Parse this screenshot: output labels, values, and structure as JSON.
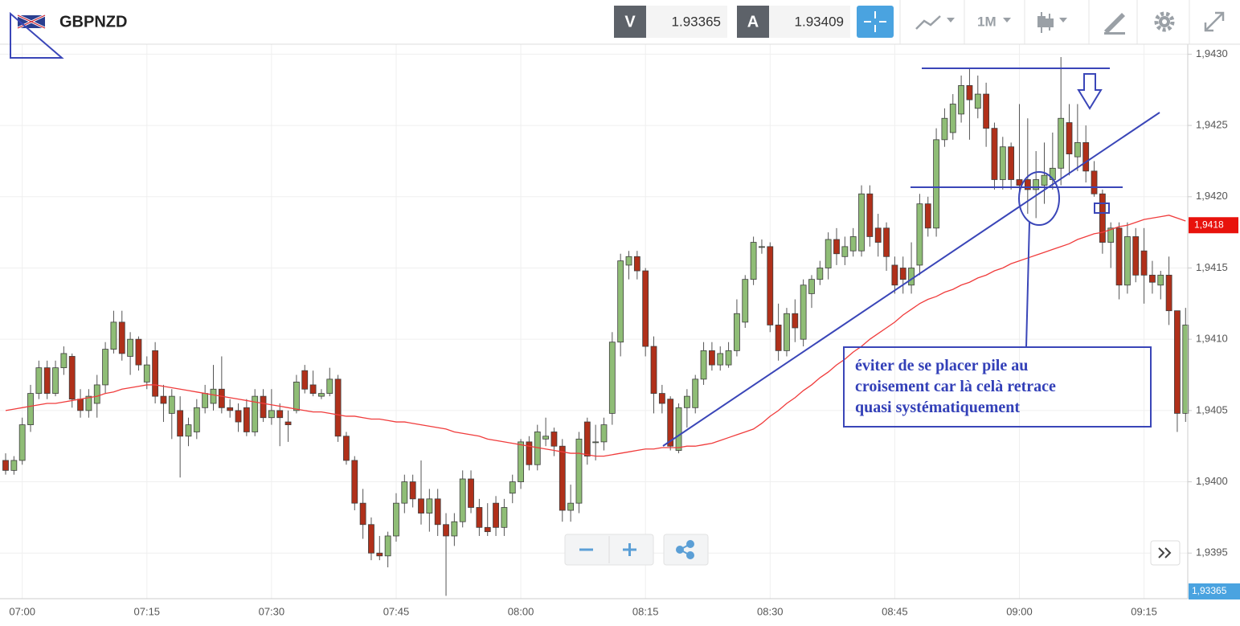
{
  "toolbar": {
    "symbol": "GBPNZD",
    "bid_label": "V",
    "bid": "1.93365",
    "ask_label": "A",
    "ask": "1.93409",
    "timeframe": "1M"
  },
  "chart_data": {
    "type": "candlestick",
    "categories": [
      null,
      null,
      "07:00",
      null,
      null,
      null,
      null,
      null,
      null,
      null,
      null,
      null,
      null,
      null,
      null,
      null,
      null,
      "07:15",
      null,
      null,
      null,
      null,
      null,
      null,
      null,
      null,
      null,
      null,
      null,
      null,
      null,
      null,
      "07:30",
      null,
      null,
      null,
      null,
      null,
      null,
      null,
      null,
      null,
      null,
      null,
      null,
      null,
      null,
      "07:45",
      null,
      null,
      null,
      null,
      null,
      null,
      null,
      null,
      null,
      null,
      null,
      null,
      null,
      null,
      "08:00",
      null,
      null,
      null,
      null,
      null,
      null,
      null,
      null,
      null,
      null,
      null,
      null,
      null,
      null,
      "08:15",
      null,
      null,
      null,
      null,
      null,
      null,
      null,
      null,
      null,
      null,
      null,
      null,
      null,
      null,
      "08:30",
      null,
      null,
      null,
      null,
      null,
      null,
      null,
      null,
      null,
      null,
      null,
      null,
      null,
      null,
      "08:45",
      null,
      null,
      null,
      null,
      null,
      null,
      null,
      null,
      null,
      null,
      null,
      null,
      null,
      null,
      "09:00",
      null,
      null,
      null,
      null,
      null,
      null,
      null,
      null,
      null,
      null,
      null,
      null,
      null,
      null,
      "09:15",
      null,
      null,
      null,
      null,
      null
    ],
    "ohlc": [
      [
        1.94015,
        1.9402,
        1.94005,
        1.94008
      ],
      [
        1.94008,
        1.94018,
        1.94005,
        1.94015
      ],
      [
        1.94015,
        1.94045,
        1.94012,
        1.9404
      ],
      [
        1.9404,
        1.94068,
        1.94035,
        1.94062
      ],
      [
        1.94062,
        1.94085,
        1.94058,
        1.9408
      ],
      [
        1.9408,
        1.94085,
        1.94058,
        1.94062
      ],
      [
        1.94062,
        1.94085,
        1.9406,
        1.9408
      ],
      [
        1.9408,
        1.94095,
        1.94075,
        1.9409
      ],
      [
        1.94088,
        1.9409,
        1.94052,
        1.94058
      ],
      [
        1.94058,
        1.94065,
        1.94045,
        1.9405
      ],
      [
        1.9405,
        1.94065,
        1.94045,
        1.9406
      ],
      [
        1.94055,
        1.94075,
        1.94045,
        1.94068
      ],
      [
        1.94068,
        1.94098,
        1.94062,
        1.94093
      ],
      [
        1.94093,
        1.9412,
        1.9409,
        1.94112
      ],
      [
        1.94112,
        1.9412,
        1.94085,
        1.9409
      ],
      [
        1.94088,
        1.94105,
        1.94075,
        1.941
      ],
      [
        1.941,
        1.94102,
        1.94078,
        1.94082
      ],
      [
        1.9407,
        1.94088,
        1.94065,
        1.94082
      ],
      [
        1.94092,
        1.94098,
        1.94055,
        1.9406
      ],
      [
        1.9406,
        1.94068,
        1.94042,
        1.94055
      ],
      [
        1.94048,
        1.94065,
        1.9403,
        1.9406
      ],
      [
        1.9405,
        1.9406,
        1.94003,
        1.94032
      ],
      [
        1.94032,
        1.94045,
        1.94025,
        1.9404
      ],
      [
        1.94035,
        1.94058,
        1.9403,
        1.94052
      ],
      [
        1.94052,
        1.94068,
        1.94048,
        1.94062
      ],
      [
        1.94055,
        1.94082,
        1.9405,
        1.94065
      ],
      [
        1.94065,
        1.94088,
        1.94048,
        1.94052
      ],
      [
        1.94052,
        1.94058,
        1.94045,
        1.9405
      ],
      [
        1.9405,
        1.94055,
        1.94035,
        1.94042
      ],
      [
        1.94052,
        1.94058,
        1.94032,
        1.94035
      ],
      [
        1.94035,
        1.94065,
        1.94032,
        1.9406
      ],
      [
        1.9406,
        1.94065,
        1.94042,
        1.94045
      ],
      [
        1.94045,
        1.94065,
        1.9404,
        1.9405
      ],
      [
        1.9405,
        1.94055,
        1.94025,
        1.94045
      ],
      [
        1.94042,
        1.9405,
        1.94028,
        1.9404
      ],
      [
        1.9405,
        1.94075,
        1.94048,
        1.9407
      ],
      [
        1.94078,
        1.94082,
        1.94062,
        1.94065
      ],
      [
        1.94068,
        1.94078,
        1.9406,
        1.94062
      ],
      [
        1.9406,
        1.94065,
        1.94058,
        1.94062
      ],
      [
        1.94062,
        1.9408,
        1.9406,
        1.94072
      ],
      [
        1.94072,
        1.94075,
        1.94028,
        1.94032
      ],
      [
        1.94032,
        1.94035,
        1.94012,
        1.94015
      ],
      [
        1.94015,
        1.94018,
        1.9398,
        1.93985
      ],
      [
        1.93985,
        1.93995,
        1.9396,
        1.9397
      ],
      [
        1.9397,
        1.93975,
        1.93945,
        1.9395
      ],
      [
        1.9395,
        1.93962,
        1.93945,
        1.93948
      ],
      [
        1.93948,
        1.93965,
        1.9394,
        1.93962
      ],
      [
        1.93962,
        1.93992,
        1.93958,
        1.93985
      ],
      [
        1.93985,
        1.94005,
        1.93978,
        1.94
      ],
      [
        1.94,
        1.94005,
        1.93982,
        1.93988
      ],
      [
        1.93988,
        1.94015,
        1.9397,
        1.93978
      ],
      [
        1.93978,
        1.93995,
        1.93965,
        1.93988
      ],
      [
        1.93988,
        1.93995,
        1.93962,
        1.9397
      ],
      [
        1.9397,
        1.93978,
        1.9392,
        1.93962
      ],
      [
        1.93962,
        1.93978,
        1.93955,
        1.93972
      ],
      [
        1.93972,
        1.94008,
        1.93968,
        1.94002
      ],
      [
        1.94002,
        1.94008,
        1.93978,
        1.93982
      ],
      [
        1.93982,
        1.93988,
        1.93962,
        1.93968
      ],
      [
        1.93968,
        1.93985,
        1.93962,
        1.93965
      ],
      [
        1.93985,
        1.9399,
        1.93962,
        1.93968
      ],
      [
        1.93968,
        1.93988,
        1.93962,
        1.93982
      ],
      [
        1.93992,
        1.94005,
        1.93985,
        1.94
      ],
      [
        1.94,
        1.9403,
        1.93995,
        1.94028
      ],
      [
        1.94028,
        1.94032,
        1.94008,
        1.94012
      ],
      [
        1.94012,
        1.9404,
        1.94008,
        1.94035
      ],
      [
        1.9403,
        1.94045,
        1.94025,
        1.94032
      ],
      [
        1.94035,
        1.94038,
        1.94018,
        1.94025
      ],
      [
        1.94025,
        1.9403,
        1.93972,
        1.9398
      ],
      [
        1.9398,
        1.93998,
        1.93972,
        1.93985
      ],
      [
        1.93985,
        1.94035,
        1.93978,
        1.9403
      ],
      [
        1.94042,
        1.94045,
        1.94012,
        1.94018
      ],
      [
        1.94028,
        1.9404,
        1.94015,
        1.94028
      ],
      [
        1.94028,
        1.94045,
        1.94022,
        1.9404
      ],
      [
        1.94048,
        1.94105,
        1.9404,
        1.94098
      ],
      [
        1.94098,
        1.9416,
        1.94088,
        1.94155
      ],
      [
        1.94152,
        1.94162,
        1.94142,
        1.94158
      ],
      [
        1.94158,
        1.94162,
        1.94142,
        1.94148
      ],
      [
        1.94148,
        1.9415,
        1.94088,
        1.94095
      ],
      [
        1.94095,
        1.94102,
        1.94048,
        1.94062
      ],
      [
        1.94062,
        1.94068,
        1.94048,
        1.94055
      ],
      [
        1.94058,
        1.9406,
        1.94022,
        1.94025
      ],
      [
        1.94022,
        1.94055,
        1.9402,
        1.94052
      ],
      [
        1.94052,
        1.94065,
        1.94038,
        1.9406
      ],
      [
        1.94052,
        1.94075,
        1.94048,
        1.94072
      ],
      [
        1.94072,
        1.94098,
        1.94068,
        1.94092
      ],
      [
        1.94092,
        1.94098,
        1.94078,
        1.94082
      ],
      [
        1.94082,
        1.94095,
        1.94078,
        1.9409
      ],
      [
        1.94082,
        1.94098,
        1.9408,
        1.94092
      ],
      [
        1.94092,
        1.94128,
        1.94088,
        1.94118
      ],
      [
        1.94112,
        1.94145,
        1.94108,
        1.94142
      ],
      [
        1.94142,
        1.94172,
        1.94138,
        1.94168
      ],
      [
        1.94165,
        1.9417,
        1.9416,
        1.94165
      ],
      [
        1.94165,
        1.94168,
        1.94105,
        1.9411
      ],
      [
        1.9411,
        1.94125,
        1.94085,
        1.94092
      ],
      [
        1.94092,
        1.94122,
        1.94088,
        1.94118
      ],
      [
        1.94118,
        1.94128,
        1.94098,
        1.94108
      ],
      [
        1.941,
        1.94142,
        1.94095,
        1.94138
      ],
      [
        1.94132,
        1.94145,
        1.94122,
        1.94142
      ],
      [
        1.94142,
        1.94155,
        1.94138,
        1.9415
      ],
      [
        1.9415,
        1.94175,
        1.94142,
        1.9417
      ],
      [
        1.9417,
        1.94178,
        1.94152,
        1.9416
      ],
      [
        1.94158,
        1.94172,
        1.94152,
        1.94165
      ],
      [
        1.94162,
        1.94178,
        1.94158,
        1.94172
      ],
      [
        1.94162,
        1.94208,
        1.94158,
        1.94202
      ],
      [
        1.94202,
        1.94208,
        1.94165,
        1.94172
      ],
      [
        1.94178,
        1.94188,
        1.94158,
        1.94168
      ],
      [
        1.94178,
        1.94182,
        1.94148,
        1.94158
      ],
      [
        1.94152,
        1.94158,
        1.94132,
        1.94138
      ],
      [
        1.9415,
        1.94158,
        1.94132,
        1.94142
      ],
      [
        1.94138,
        1.94168,
        1.94132,
        1.9415
      ],
      [
        1.94152,
        1.94202,
        1.94145,
        1.94195
      ],
      [
        1.94195,
        1.942,
        1.94172,
        1.94178
      ],
      [
        1.94178,
        1.94248,
        1.94172,
        1.9424
      ],
      [
        1.9424,
        1.94262,
        1.94235,
        1.94255
      ],
      [
        1.94245,
        1.94272,
        1.9424,
        1.94265
      ],
      [
        1.94258,
        1.94285,
        1.94252,
        1.94278
      ],
      [
        1.94278,
        1.9429,
        1.9424,
        1.94268
      ],
      [
        1.94262,
        1.94285,
        1.94255,
        1.94272
      ],
      [
        1.94272,
        1.9428,
        1.94235,
        1.94248
      ],
      [
        1.94248,
        1.94252,
        1.94205,
        1.94212
      ],
      [
        1.94212,
        1.94242,
        1.94205,
        1.94235
      ],
      [
        1.94235,
        1.94238,
        1.94205,
        1.94212
      ],
      [
        1.94212,
        1.94265,
        1.94195,
        1.94208
      ],
      [
        1.94212,
        1.94255,
        1.94188,
        1.94205
      ],
      [
        1.94205,
        1.94232,
        1.94185,
        1.94212
      ],
      [
        1.94208,
        1.94238,
        1.94195,
        1.94215
      ],
      [
        1.94212,
        1.94245,
        1.94205,
        1.9422
      ],
      [
        1.9422,
        1.94298,
        1.94208,
        1.94255
      ],
      [
        1.94252,
        1.94265,
        1.94215,
        1.9423
      ],
      [
        1.94228,
        1.94265,
        1.94218,
        1.94238
      ],
      [
        1.94238,
        1.9425,
        1.9421,
        1.94218
      ],
      [
        1.94218,
        1.94225,
        1.942,
        1.94202
      ],
      [
        1.94202,
        1.94205,
        1.9416,
        1.94168
      ],
      [
        1.94168,
        1.94182,
        1.9415,
        1.94178
      ],
      [
        1.94178,
        1.94182,
        1.94128,
        1.94138
      ],
      [
        1.94138,
        1.94182,
        1.94132,
        1.94172
      ],
      [
        1.94172,
        1.94178,
        1.9414,
        1.94145
      ],
      [
        1.94162,
        1.94178,
        1.94125,
        1.94145
      ],
      [
        1.94145,
        1.94155,
        1.94132,
        1.9414
      ],
      [
        1.94138,
        1.94148,
        1.94128,
        1.94145
      ],
      [
        1.94145,
        1.94158,
        1.9411,
        1.9412
      ],
      [
        1.9412,
        1.9412,
        1.94035,
        1.94048
      ],
      [
        1.94048,
        1.94122,
        1.94042,
        1.9411
      ]
    ],
    "colors": {
      "up": "#8fbd76",
      "down": "#b0301a"
    },
    "moving_average": {
      "color": "#f03c3c",
      "values": [
        1.9405,
        1.94051,
        1.94052,
        1.94053,
        1.94054,
        1.94055,
        1.94055,
        1.94056,
        1.94057,
        1.94058,
        1.94059,
        1.9406,
        1.94062,
        1.94063,
        1.94065,
        1.94066,
        1.94067,
        1.94068,
        1.94068,
        1.94067,
        1.94066,
        1.94065,
        1.94064,
        1.94063,
        1.94062,
        1.94061,
        1.9406,
        1.94059,
        1.94058,
        1.94057,
        1.94056,
        1.94055,
        1.94054,
        1.94053,
        1.94052,
        1.94051,
        1.9405,
        1.94049,
        1.94049,
        1.94048,
        1.94047,
        1.94046,
        1.94046,
        1.94045,
        1.94044,
        1.94044,
        1.94043,
        1.94042,
        1.94042,
        1.94041,
        1.9404,
        1.94039,
        1.94038,
        1.94037,
        1.94035,
        1.94034,
        1.94033,
        1.94032,
        1.9403,
        1.94029,
        1.94028,
        1.94027,
        1.94026,
        1.94025,
        1.94024,
        1.94023,
        1.94022,
        1.94021,
        1.9402,
        1.9402,
        1.94019,
        1.94018,
        1.94018,
        1.94019,
        1.9402,
        1.94021,
        1.94022,
        1.94023,
        1.94023,
        1.94024,
        1.94024,
        1.94024,
        1.94025,
        1.94025,
        1.94026,
        1.94027,
        1.94029,
        1.94031,
        1.94033,
        1.94035,
        1.94037,
        1.94041,
        1.94046,
        1.9405,
        1.94055,
        1.94059,
        1.94064,
        1.94068,
        1.94073,
        1.94077,
        1.94082,
        1.94086,
        1.94091,
        1.94095,
        1.941,
        1.94104,
        1.94108,
        1.94112,
        1.94117,
        1.94121,
        1.94125,
        1.94128,
        1.9413,
        1.94133,
        1.94135,
        1.94138,
        1.9414,
        1.94143,
        1.94145,
        1.94148,
        1.9415,
        1.94153,
        1.94155,
        1.94157,
        1.94159,
        1.94161,
        1.94163,
        1.94165,
        1.94167,
        1.9417,
        1.94172,
        1.94174,
        1.94175,
        1.94177,
        1.94179,
        1.9418,
        1.94182,
        1.94184,
        1.94185,
        1.94186,
        1.94187,
        1.94185,
        1.94183
      ]
    },
    "ylim": [
      1.93918,
      1.94307
    ],
    "yticks": [
      {
        "value": 1.9395,
        "label": "1,9395"
      },
      {
        "value": 1.94,
        "label": "1,9400"
      },
      {
        "value": 1.9405,
        "label": "1,9405"
      },
      {
        "value": 1.941,
        "label": "1,9410"
      },
      {
        "value": 1.9415,
        "label": "1,9415"
      },
      {
        "value": 1.942,
        "label": "1,9420"
      },
      {
        "value": 1.9425,
        "label": "1,9425"
      },
      {
        "value": 1.943,
        "label": "1,9430"
      }
    ],
    "grid": true,
    "last_price": {
      "value": 1.9418,
      "label": "1,9418"
    },
    "price_tag": "1,93365"
  },
  "annotation": {
    "lines": [
      "éviter de se placer pile au",
      "croisement car là celà retrace",
      "quasi systématiquement"
    ]
  }
}
